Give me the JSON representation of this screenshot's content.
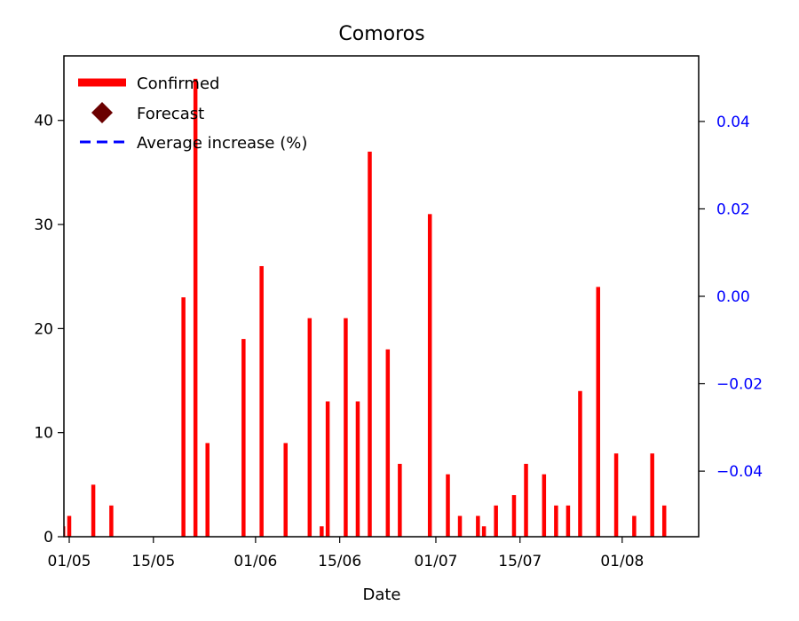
{
  "chart_data": {
    "type": "bar",
    "title": "Comoros",
    "xlabel": "Date",
    "ylabel": "",
    "ylim": [
      0,
      46.2
    ],
    "y2lim": [
      -0.055,
      0.055
    ],
    "x_ticks": [
      "01/05",
      "15/05",
      "01/06",
      "15/06",
      "01/07",
      "15/07",
      "01/08"
    ],
    "y_ticks": [
      "0",
      "10",
      "20",
      "30",
      "40"
    ],
    "y2_ticks": [
      "−0.04",
      "−0.02",
      "0.00",
      "0.02",
      "0.04"
    ],
    "legend_position": "top-left",
    "legend": [
      "Confirmed",
      "Forecast",
      "Average increase (%)"
    ],
    "colors": {
      "confirmed": "#ff0000",
      "forecast": "#6b0000",
      "average": "#0000ff",
      "right_axis": "#0000ff"
    },
    "series": [
      {
        "name": "Confirmed",
        "x": [
          "2020-04-30",
          "2020-05-01",
          "2020-05-05",
          "2020-05-08",
          "2020-05-20",
          "2020-05-22",
          "2020-05-24",
          "2020-05-30",
          "2020-06-02",
          "2020-06-06",
          "2020-06-10",
          "2020-06-12",
          "2020-06-13",
          "2020-06-16",
          "2020-06-18",
          "2020-06-20",
          "2020-06-23",
          "2020-06-25",
          "2020-06-30",
          "2020-07-03",
          "2020-07-05",
          "2020-07-08",
          "2020-07-09",
          "2020-07-11",
          "2020-07-14",
          "2020-07-16",
          "2020-07-19",
          "2020-07-21",
          "2020-07-23",
          "2020-07-25",
          "2020-07-28",
          "2020-07-31",
          "2020-08-03",
          "2020-08-06",
          "2020-08-08",
          "2020-08-10"
        ],
        "values": [
          1,
          2,
          5,
          3,
          23,
          44,
          9,
          19,
          26,
          9,
          21,
          1,
          13,
          21,
          13,
          37,
          18,
          7,
          31,
          6,
          2,
          2,
          1,
          3,
          4,
          7,
          6,
          3,
          3,
          14,
          24,
          8,
          2,
          8,
          3,
          0
        ]
      }
    ]
  }
}
